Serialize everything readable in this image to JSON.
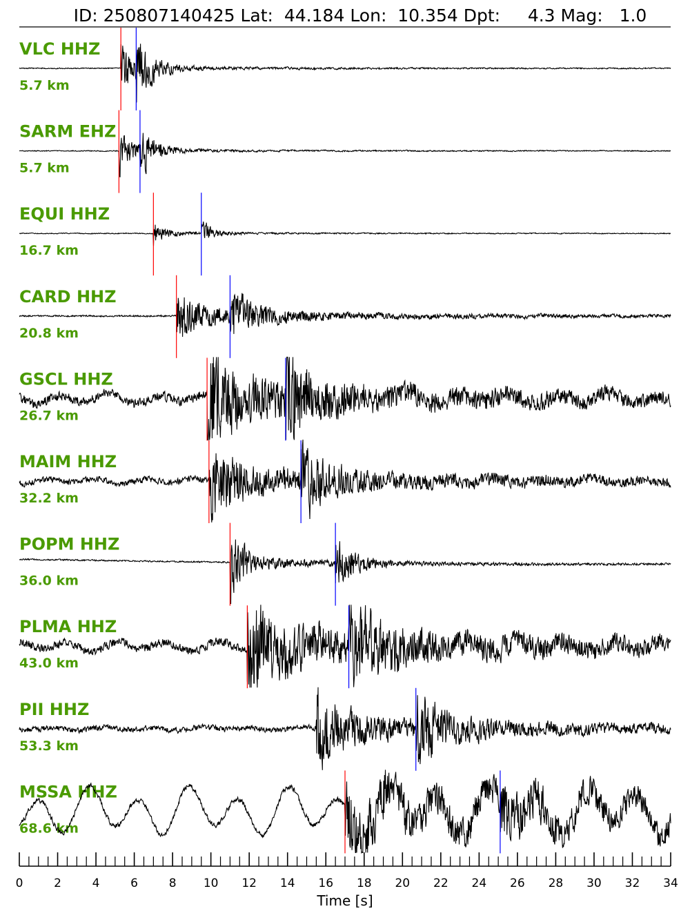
{
  "chart_data": {
    "type": "line",
    "title": {
      "id_label": "ID:",
      "id": "250807140425",
      "lat_label": "Lat:",
      "lat": "44.184",
      "lon_label": "Lon:",
      "lon": "10.354",
      "depth_label": "Dpt:",
      "depth": "4.3",
      "mag_label": "Mag:",
      "mag": "1.0"
    },
    "xlabel": "Time [s]",
    "xlim": [
      0,
      34
    ],
    "xticks": [
      0,
      2,
      4,
      6,
      8,
      10,
      12,
      14,
      16,
      18,
      20,
      22,
      24,
      26,
      28,
      30,
      32,
      34
    ],
    "minor_tick_step": 0.5,
    "label_color": "#4a9a00",
    "p_pick_color": "#ff0000",
    "s_pick_color": "#0000ff",
    "trace_color": "#000000",
    "series": [
      {
        "station": "VLC HHZ",
        "distance": "5.7 km",
        "p_pick": 5.3,
        "s_pick": 6.1,
        "onset": 5.3,
        "decay": 2.2,
        "pre_amp": 0.01,
        "coda": 0.04,
        "peak": 0.55,
        "lowfreq": 0.0,
        "drift": 0.0
      },
      {
        "station": "SARM EHZ",
        "distance": "5.7 km",
        "p_pick": 5.2,
        "s_pick": 6.3,
        "onset": 5.2,
        "decay": 2.0,
        "pre_amp": 0.01,
        "coda": 0.03,
        "peak": 0.5,
        "lowfreq": 0.0,
        "drift": 0.0
      },
      {
        "station": "EQUI HHZ",
        "distance": "16.7 km",
        "p_pick": 7.0,
        "s_pick": 9.5,
        "onset": 7.0,
        "decay": 1.6,
        "pre_amp": 0.01,
        "coda": 0.03,
        "peak": 0.3,
        "lowfreq": 0.0,
        "drift": 0.0
      },
      {
        "station": "CARD HHZ",
        "distance": "20.8 km",
        "p_pick": 8.2,
        "s_pick": 11.0,
        "onset": 8.2,
        "decay": 3.5,
        "pre_amp": 0.02,
        "coda": 0.14,
        "peak": 0.55,
        "lowfreq": 0.0,
        "drift": 0.0
      },
      {
        "station": "GSCL HHZ",
        "distance": "26.7 km",
        "p_pick": 9.8,
        "s_pick": 13.9,
        "onset": 9.8,
        "decay": 3.0,
        "pre_amp": 0.06,
        "coda": 0.22,
        "peak": 0.55,
        "lowfreq": 0.12,
        "drift": 0.0
      },
      {
        "station": "MAIM HHZ",
        "distance": "32.2 km",
        "p_pick": 9.9,
        "s_pick": 14.7,
        "onset": 9.9,
        "decay": 3.0,
        "pre_amp": 0.04,
        "coda": 0.16,
        "peak": 0.5,
        "lowfreq": 0.06,
        "drift": 0.0
      },
      {
        "station": "POPM HHZ",
        "distance": "36.0 km",
        "p_pick": 11.0,
        "s_pick": 16.5,
        "onset": 11.0,
        "decay": 2.2,
        "pre_amp": 0.01,
        "coda": 0.06,
        "peak": 0.45,
        "lowfreq": 0.0,
        "drift": 0.3
      },
      {
        "station": "PLMA HHZ",
        "distance": "43.0 km",
        "p_pick": 11.9,
        "s_pick": 17.2,
        "onset": 11.9,
        "decay": 4.0,
        "pre_amp": 0.06,
        "coda": 0.25,
        "peak": 0.5,
        "lowfreq": 0.12,
        "drift": 0.0
      },
      {
        "station": "PII HHZ",
        "distance": "53.3 km",
        "p_pick": null,
        "s_pick": 20.7,
        "onset": 15.5,
        "decay": 3.5,
        "pre_amp": 0.04,
        "coda": 0.14,
        "peak": 0.55,
        "lowfreq": 0.04,
        "drift": 0.0
      },
      {
        "station": "MSSA HHZ",
        "distance": "68.6 km",
        "p_pick": 17.0,
        "s_pick": 25.1,
        "onset": 17.0,
        "decay": 6.0,
        "pre_amp": 0.04,
        "coda": 0.25,
        "peak": 0.3,
        "lowfreq": 0.55,
        "drift": 0.0
      }
    ]
  }
}
